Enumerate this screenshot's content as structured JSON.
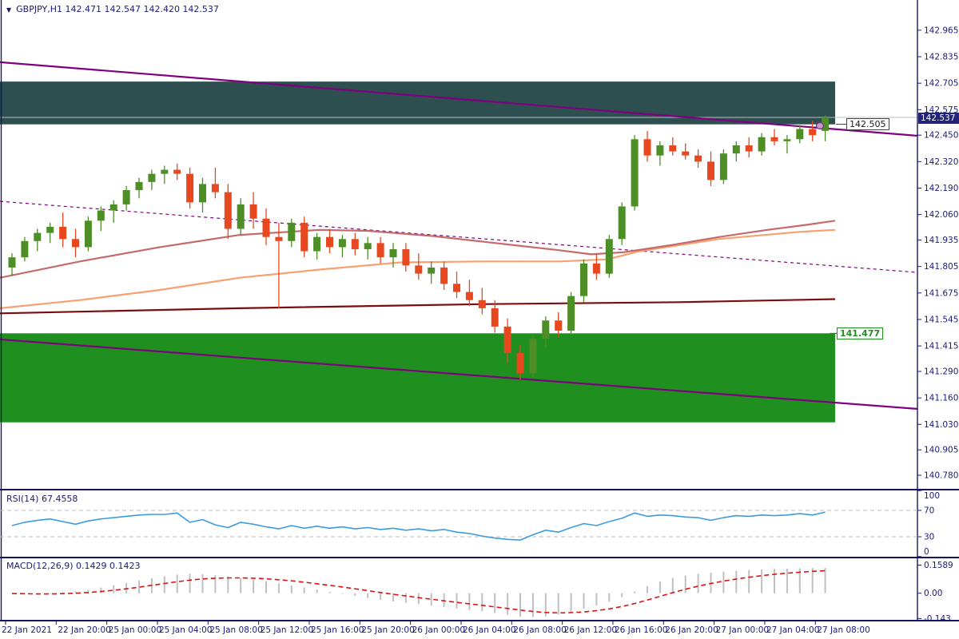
{
  "window": {
    "dropdown_icon": "▼",
    "symbol": "GBPJPY,H1",
    "ohlc_text": "142.471 142.547 142.420 142.537"
  },
  "colors": {
    "bull": "#4e8e27",
    "bear": "#e8481f",
    "supply_zone": "#2e4f4f",
    "demand_zone": "#1f8f1f",
    "trendline": "#800080",
    "ma_fast": "#c46a6a",
    "ma_mid": "#f8a070",
    "ma_slow": "#7a0c0c",
    "rsi_line": "#3d9be0",
    "level_dash": "#bdbdbd",
    "macd_histogram": "#c0c0c0",
    "macd_signal": "#dd1111",
    "axis_text": "#1b1b7a",
    "separator": "#16165e",
    "current_price_line": "#b6bfca",
    "badge_bg": "#23237a"
  },
  "price_axis": {
    "labels": [
      "142.965",
      "142.835",
      "142.705",
      "142.575",
      "142.450",
      "142.320",
      "142.190",
      "142.060",
      "141.935",
      "141.805",
      "141.675",
      "141.545",
      "141.415",
      "141.290",
      "141.160",
      "141.030",
      "140.905",
      "140.780"
    ],
    "current_price": "142.537"
  },
  "time_axis": {
    "labels": [
      "22 Jan 2021",
      "22 Jan 20:00",
      "25 Jan 00:00",
      "25 Jan 04:00",
      "25 Jan 08:00",
      "25 Jan 12:00",
      "25 Jan 16:00",
      "25 Jan 20:00",
      "26 Jan 00:00",
      "26 Jan 04:00",
      "26 Jan 08:00",
      "26 Jan 12:00",
      "26 Jan 16:00",
      "26 Jan 20:00",
      "27 Jan 00:00",
      "27 Jan 04:00",
      "27 Jan 08:00"
    ]
  },
  "overlays": {
    "trendline_tag": "142.505",
    "zone_tag": "141.477"
  },
  "rsi_panel": {
    "label": "RSI(14) 67.4558",
    "levels": [
      "100",
      "70",
      "30",
      "0"
    ],
    "level_values": [
      100,
      70,
      30,
      0
    ]
  },
  "macd_panel": {
    "label": "MACD(12,26,9) 0.1429 0.1423",
    "levels": [
      "0.1589",
      "0.00",
      "-0.143"
    ],
    "level_values": [
      0.1589,
      0,
      -0.143
    ]
  },
  "chart_data": {
    "type": "candlestick",
    "symbol": "GBPJPY",
    "timeframe": "H1",
    "title": "GBPJPY,H1 142.471 142.547 142.420 142.537",
    "ohlc_current": {
      "open": 142.471,
      "high": 142.547,
      "low": 142.42,
      "close": 142.537
    },
    "current_price": 142.537,
    "y_tick_values": [
      142.965,
      142.835,
      142.705,
      142.575,
      142.45,
      142.32,
      142.19,
      142.06,
      141.935,
      141.805,
      141.675,
      141.545,
      141.415,
      141.29,
      141.16,
      141.03,
      140.905,
      140.78
    ],
    "y_range": [
      140.7,
      143.05
    ],
    "candles": [
      [
        141.8,
        141.87,
        141.76,
        141.85
      ],
      [
        141.85,
        141.95,
        141.83,
        141.93
      ],
      [
        141.93,
        141.99,
        141.88,
        141.97
      ],
      [
        141.97,
        142.02,
        141.92,
        142.0
      ],
      [
        142.0,
        142.07,
        141.9,
        141.94
      ],
      [
        141.94,
        141.99,
        141.85,
        141.9
      ],
      [
        141.9,
        142.05,
        141.88,
        142.03
      ],
      [
        142.03,
        142.1,
        141.98,
        142.08
      ],
      [
        142.08,
        142.13,
        142.02,
        142.11
      ],
      [
        142.11,
        142.2,
        142.08,
        142.18
      ],
      [
        142.18,
        142.24,
        142.14,
        142.22
      ],
      [
        142.22,
        142.28,
        142.18,
        142.26
      ],
      [
        142.26,
        142.3,
        142.21,
        142.28
      ],
      [
        142.28,
        142.31,
        142.23,
        142.26
      ],
      [
        142.26,
        142.29,
        142.09,
        142.12
      ],
      [
        142.12,
        142.24,
        142.07,
        142.21
      ],
      [
        142.21,
        142.29,
        142.14,
        142.17
      ],
      [
        142.17,
        142.21,
        141.94,
        141.99
      ],
      [
        141.99,
        142.14,
        141.96,
        142.11
      ],
      [
        142.11,
        142.17,
        141.99,
        142.04
      ],
      [
        142.04,
        142.09,
        141.91,
        141.95
      ],
      [
        141.95,
        142.02,
        141.6,
        141.93
      ],
      [
        141.93,
        142.04,
        141.9,
        142.02
      ],
      [
        142.02,
        142.05,
        141.85,
        141.88
      ],
      [
        141.88,
        141.97,
        141.84,
        141.95
      ],
      [
        141.95,
        141.99,
        141.87,
        141.9
      ],
      [
        141.9,
        141.96,
        141.85,
        141.94
      ],
      [
        141.94,
        141.97,
        141.86,
        141.89
      ],
      [
        141.89,
        141.95,
        141.84,
        141.92
      ],
      [
        141.92,
        141.95,
        141.82,
        141.85
      ],
      [
        141.85,
        141.92,
        141.8,
        141.89
      ],
      [
        141.89,
        141.92,
        141.78,
        141.81
      ],
      [
        141.81,
        141.87,
        141.74,
        141.77
      ],
      [
        141.77,
        141.83,
        141.72,
        141.8
      ],
      [
        141.8,
        141.83,
        141.69,
        141.72
      ],
      [
        141.72,
        141.78,
        141.65,
        141.68
      ],
      [
        141.68,
        141.74,
        141.61,
        141.64
      ],
      [
        141.64,
        141.7,
        141.57,
        141.6
      ],
      [
        141.6,
        141.64,
        141.48,
        141.51
      ],
      [
        141.51,
        141.55,
        141.33,
        141.38
      ],
      [
        141.38,
        141.42,
        141.25,
        141.28
      ],
      [
        141.28,
        141.47,
        141.26,
        141.45
      ],
      [
        141.45,
        141.56,
        141.41,
        141.54
      ],
      [
        141.54,
        141.58,
        141.46,
        141.49
      ],
      [
        141.49,
        141.68,
        141.47,
        141.66
      ],
      [
        141.66,
        141.84,
        141.63,
        141.82
      ],
      [
        141.82,
        141.87,
        141.74,
        141.77
      ],
      [
        141.77,
        141.96,
        141.75,
        141.94
      ],
      [
        141.94,
        142.12,
        141.91,
        142.1
      ],
      [
        142.1,
        142.45,
        142.08,
        142.43
      ],
      [
        142.43,
        142.47,
        142.32,
        142.35
      ],
      [
        142.35,
        142.42,
        142.3,
        142.4
      ],
      [
        142.4,
        142.44,
        142.35,
        142.37
      ],
      [
        142.37,
        142.41,
        142.33,
        142.35
      ],
      [
        142.35,
        142.38,
        142.29,
        142.32
      ],
      [
        142.32,
        142.37,
        142.2,
        142.23
      ],
      [
        142.23,
        142.38,
        142.21,
        142.36
      ],
      [
        142.36,
        142.42,
        142.32,
        142.4
      ],
      [
        142.4,
        142.44,
        142.34,
        142.37
      ],
      [
        142.37,
        142.46,
        142.35,
        142.44
      ],
      [
        142.44,
        142.48,
        142.4,
        142.42
      ],
      [
        142.42,
        142.45,
        142.36,
        142.43
      ],
      [
        142.43,
        142.5,
        142.41,
        142.48
      ],
      [
        142.48,
        142.52,
        142.42,
        142.45
      ],
      [
        142.471,
        142.547,
        142.42,
        142.537
      ]
    ],
    "zones": [
      {
        "name": "supply",
        "price_top": 142.713,
        "price_bottom": 142.503,
        "x_from": 0,
        "x_to": 1045,
        "color": "#2e4f4f",
        "tag": ""
      },
      {
        "name": "demand",
        "price_top": 141.477,
        "price_bottom": 141.04,
        "x_from": 0,
        "x_to": 1045,
        "color": "#1f8f1f",
        "tag": "141.477"
      }
    ],
    "trendlines": [
      {
        "name": "channel-upper",
        "from": [
          0,
          142.808
        ],
        "to": [
          1148,
          142.447
        ],
        "style": "solid"
      },
      {
        "name": "channel-lower",
        "from": [
          0,
          141.447
        ],
        "to": [
          1148,
          141.106
        ],
        "style": "solid"
      },
      {
        "name": "channel-middle",
        "from": [
          0,
          142.125
        ],
        "to": [
          1148,
          141.776
        ],
        "style": "dashed"
      }
    ],
    "moving_averages": [
      {
        "name": "ma-slow",
        "color": "#7a0c0c",
        "points": [
          [
            0,
            141.575
          ],
          [
            300,
            141.6
          ],
          [
            600,
            141.62
          ],
          [
            850,
            141.63
          ],
          [
            1045,
            141.645
          ]
        ]
      },
      {
        "name": "ma-mid",
        "color": "#f8a070",
        "points": [
          [
            0,
            141.6
          ],
          [
            100,
            141.64
          ],
          [
            200,
            141.69
          ],
          [
            300,
            141.75
          ],
          [
            400,
            141.79
          ],
          [
            500,
            141.825
          ],
          [
            600,
            141.83
          ],
          [
            700,
            141.83
          ],
          [
            760,
            141.84
          ],
          [
            800,
            141.88
          ],
          [
            900,
            141.94
          ],
          [
            1000,
            141.975
          ],
          [
            1045,
            141.985
          ]
        ]
      },
      {
        "name": "ma-fast",
        "color": "#c46a6a",
        "points": [
          [
            0,
            141.75
          ],
          [
            100,
            141.83
          ],
          [
            200,
            141.9
          ],
          [
            300,
            141.96
          ],
          [
            400,
            141.985
          ],
          [
            460,
            141.98
          ],
          [
            540,
            141.955
          ],
          [
            620,
            141.92
          ],
          [
            700,
            141.885
          ],
          [
            740,
            141.865
          ],
          [
            780,
            141.875
          ],
          [
            840,
            141.91
          ],
          [
            900,
            141.95
          ],
          [
            960,
            141.985
          ],
          [
            1010,
            142.01
          ],
          [
            1045,
            142.03
          ]
        ]
      }
    ],
    "indicators": {
      "rsi": {
        "period": 14,
        "value": 67.4558,
        "levels": [
          100,
          70,
          30,
          0
        ],
        "values": [
          47,
          52,
          55,
          57,
          53,
          49,
          54,
          57,
          59,
          61,
          63,
          64,
          64,
          66,
          52,
          56,
          48,
          44,
          52,
          49,
          45,
          42,
          47,
          43,
          46,
          43,
          45,
          42,
          44,
          41,
          43,
          40,
          42,
          39,
          41,
          37,
          35,
          31,
          28,
          26,
          25,
          33,
          40,
          37,
          44,
          50,
          47,
          53,
          58,
          66,
          61,
          63,
          62,
          60,
          59,
          55,
          59,
          62,
          61,
          63,
          62,
          63,
          65,
          63,
          67.46
        ]
      },
      "macd": {
        "fast": 12,
        "slow": 26,
        "signal": 9,
        "value": 0.1429,
        "signal_value": 0.1423,
        "y_ticks": [
          0.1589,
          0,
          -0.143
        ],
        "histogram": [
          -0.002,
          -0.006,
          -0.008,
          -0.004,
          0.004,
          0.01,
          0.02,
          0.032,
          0.045,
          0.058,
          0.072,
          0.085,
          0.096,
          0.105,
          0.11,
          0.108,
          0.102,
          0.094,
          0.086,
          0.078,
          0.068,
          0.056,
          0.044,
          0.032,
          0.02,
          0.008,
          -0.004,
          -0.016,
          -0.027,
          -0.037,
          -0.046,
          -0.054,
          -0.062,
          -0.07,
          -0.078,
          -0.086,
          -0.094,
          -0.102,
          -0.112,
          -0.122,
          -0.132,
          -0.135,
          -0.13,
          -0.12,
          -0.105,
          -0.088,
          -0.07,
          -0.048,
          -0.022,
          0.01,
          0.04,
          0.066,
          0.086,
          0.1,
          0.11,
          0.116,
          0.122,
          0.127,
          0.131,
          0.134,
          0.137,
          0.139,
          0.141,
          0.142,
          0.1429
        ]
      }
    }
  }
}
